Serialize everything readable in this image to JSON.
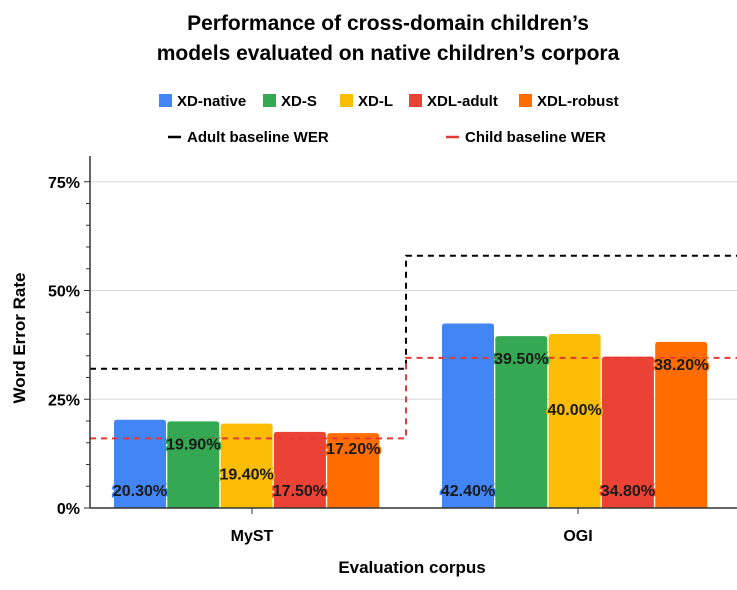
{
  "chart_data": {
    "type": "bar",
    "title_lines": [
      "Performance of cross-domain children’s",
      "models evaluated on native children’s corpora"
    ],
    "xlabel": "Evaluation corpus",
    "ylabel": "Word Error Rate",
    "categories": [
      "MyST",
      "OGI"
    ],
    "ylim": [
      0,
      0.8
    ],
    "yticks": [
      0,
      0.25,
      0.5,
      0.75
    ],
    "ytick_labels": [
      "0%",
      "25%",
      "50%",
      "75%"
    ],
    "series": [
      {
        "name": "XD-native",
        "color": "#4285F4",
        "values": [
          0.203,
          0.424
        ],
        "labels": [
          "20.30%",
          "42.40%"
        ],
        "label_pos": [
          "bottom",
          "bottom"
        ]
      },
      {
        "name": "XD-S",
        "color": "#34A853",
        "values": [
          0.199,
          0.395
        ],
        "labels": [
          "19.90%",
          "39.50%"
        ],
        "label_pos": [
          "top",
          "top"
        ]
      },
      {
        "name": "XD-L",
        "color": "#FBBC04",
        "values": [
          0.194,
          0.4
        ],
        "labels": [
          "19.40%",
          "40.00%"
        ],
        "label_pos": [
          "mid",
          "mid"
        ]
      },
      {
        "name": "XDL-adult",
        "color": "#EA4335",
        "values": [
          0.175,
          0.348
        ],
        "labels": [
          "17.50%",
          "34.80%"
        ],
        "label_pos": [
          "bottom",
          "bottom"
        ]
      },
      {
        "name": "XDL-robust",
        "color": "#FF6D01",
        "values": [
          0.172,
          0.382
        ],
        "labels": [
          "17.20%",
          "38.20%"
        ],
        "label_pos": [
          "mid",
          "top"
        ]
      }
    ],
    "baselines": [
      {
        "name": "Adult baseline WER",
        "color": "#000000",
        "values": [
          0.32,
          0.58
        ]
      },
      {
        "name": "Child baseline WER",
        "color": "#E53935",
        "values": [
          0.16,
          0.345
        ]
      }
    ],
    "grid": true,
    "legend_position": "top"
  }
}
